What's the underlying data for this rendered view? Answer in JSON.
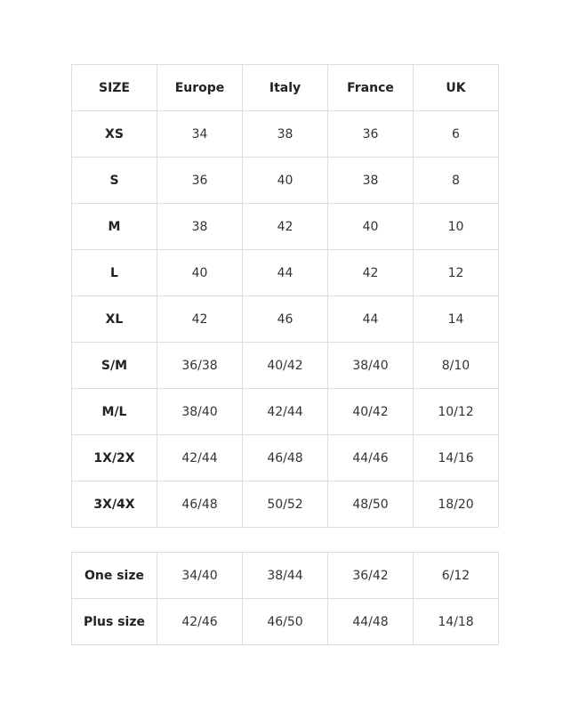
{
  "size_table": {
    "header": [
      "SIZE",
      "Europe",
      "Italy",
      "France",
      "UK"
    ],
    "rows": [
      [
        "XS",
        "34",
        "38",
        "36",
        "6"
      ],
      [
        "S",
        "36",
        "40",
        "38",
        "8"
      ],
      [
        "M",
        "38",
        "42",
        "40",
        "10"
      ],
      [
        "L",
        "40",
        "44",
        "42",
        "12"
      ],
      [
        "XL",
        "42",
        "46",
        "44",
        "14"
      ],
      [
        "S/M",
        "36/38",
        "40/42",
        "38/40",
        "8/10"
      ],
      [
        "M/L",
        "38/40",
        "42/44",
        "40/42",
        "10/12"
      ],
      [
        "1X/2X",
        "42/44",
        "46/48",
        "44/46",
        "14/16"
      ],
      [
        "3X/4X",
        "46/48",
        "50/52",
        "48/50",
        "18/20"
      ]
    ]
  },
  "one_size_table": {
    "rows": [
      [
        "One size",
        "34/40",
        "38/44",
        "36/42",
        "6/12"
      ],
      [
        "Plus size",
        "42/46",
        "46/50",
        "44/48",
        "14/18"
      ]
    ]
  }
}
